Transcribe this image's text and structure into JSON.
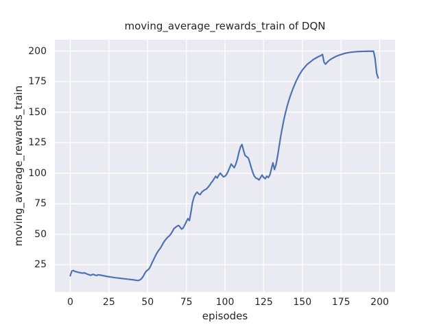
{
  "chart_data": {
    "type": "line",
    "title": "moving_average_rewards_train of DQN",
    "xlabel": "episodes",
    "ylabel": "moving_average_rewards_train",
    "x_ticks": [
      0,
      25,
      50,
      75,
      100,
      125,
      150,
      175,
      200
    ],
    "y_ticks": [
      25,
      50,
      75,
      100,
      125,
      150,
      175,
      200
    ],
    "xlim": [
      -9.95,
      209.95
    ],
    "ylim": [
      2.7,
      209.3
    ],
    "grid": true,
    "legend_position": "none",
    "style": {
      "line_color": "#4c72b0",
      "axes_background": "#eaeaf2",
      "grid_color": "#ffffff",
      "text_color": "#262626",
      "figure_background": "#ffffff"
    },
    "series": [
      {
        "name": "DQN moving average reward (train)",
        "x_start": 0,
        "x_step": 1,
        "values": [
          16.0,
          19.8,
          20.3,
          19.6,
          19.2,
          18.9,
          18.6,
          18.3,
          18.1,
          18.4,
          17.9,
          17.3,
          16.9,
          16.4,
          16.8,
          17.1,
          16.5,
          16.2,
          16.8,
          16.6,
          16.4,
          16.1,
          15.9,
          15.6,
          15.4,
          15.2,
          15.0,
          14.8,
          14.6,
          14.4,
          14.3,
          14.1,
          14.0,
          13.8,
          13.7,
          13.5,
          13.4,
          13.2,
          13.1,
          12.9,
          12.8,
          12.6,
          12.4,
          12.2,
          12.1,
          12.6,
          13.6,
          15.2,
          17.6,
          19.6,
          20.6,
          21.8,
          24.2,
          27.0,
          29.6,
          32.2,
          34.6,
          36.6,
          38.2,
          40.2,
          42.6,
          44.6,
          46.2,
          47.6,
          48.6,
          50.2,
          52.2,
          54.6,
          55.6,
          56.6,
          57.2,
          55.8,
          54.2,
          55.2,
          57.6,
          60.2,
          62.8,
          61.2,
          68.0,
          76.0,
          80.5,
          83.0,
          84.5,
          83.0,
          82.5,
          84.5,
          85.5,
          86.5,
          87.0,
          88.5,
          90.0,
          92.0,
          93.5,
          95.5,
          97.5,
          96.0,
          98.5,
          100.0,
          98.5,
          97.0,
          97.5,
          99.0,
          101.5,
          104.5,
          107.5,
          106.0,
          104.5,
          107.5,
          111.5,
          117.0,
          121.5,
          123.5,
          118.5,
          114.5,
          113.5,
          112.5,
          109.0,
          104.5,
          100.5,
          97.5,
          96.0,
          95.5,
          94.5,
          96.5,
          98.5,
          96.5,
          95.5,
          97.5,
          96.5,
          98.5,
          103.5,
          108.5,
          103.0,
          107.0,
          114.0,
          122.0,
          130.0,
          137.0,
          143.5,
          149.0,
          154.0,
          158.5,
          162.5,
          166.0,
          169.5,
          172.5,
          175.5,
          178.0,
          180.5,
          182.5,
          184.5,
          186.0,
          187.5,
          189.0,
          190.0,
          191.0,
          192.0,
          193.0,
          193.8,
          194.5,
          195.2,
          195.8,
          196.4,
          197.3,
          191.0,
          189.3,
          190.8,
          192.0,
          193.0,
          193.8,
          194.5,
          195.2,
          195.8,
          196.3,
          196.8,
          197.2,
          197.6,
          198.0,
          198.3,
          198.6,
          198.8,
          199.0,
          199.2,
          199.3,
          199.4,
          199.5,
          199.6,
          199.7,
          199.7,
          199.8,
          199.8,
          199.8,
          199.9,
          199.9,
          199.9,
          199.9,
          199.9,
          194.0,
          182.0,
          178.0
        ]
      }
    ]
  }
}
